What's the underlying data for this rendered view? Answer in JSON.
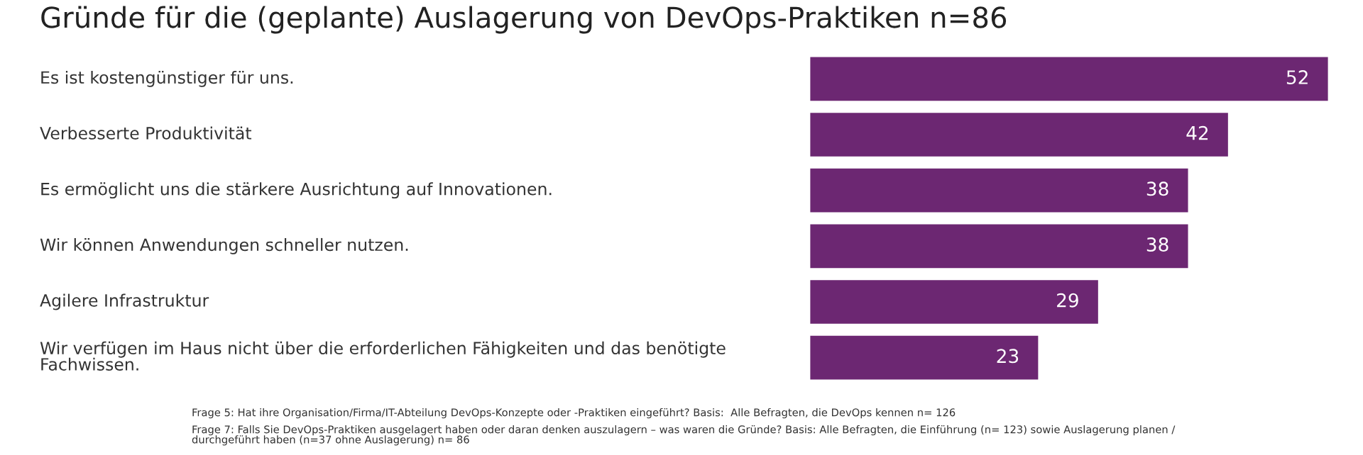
{
  "chart_data": {
    "type": "bar",
    "orientation": "horizontal",
    "data_labels": true,
    "title": "Gründe für die (geplante) Auslagerung von DevOps-Praktiken n=86",
    "categories": [
      "Es ist kostengünstiger für uns.",
      "Verbesserte Produktivität",
      "Es ermöglicht uns die stärkere Ausrichtung auf Innovationen.",
      "Wir können Anwendungen schneller nutzen.",
      "Agilere Infrastruktur",
      "Wir verfügen im Haus nicht über die erforderlichen Fähigkeiten und das benötigte\nFachwissen."
    ],
    "values": [
      52,
      42,
      38,
      38,
      29,
      23
    ],
    "color": "#6c2772",
    "annotations": [
      "Frage 5: Hat ihre Organisation/Firma/IT-Abteilung DevOps-Konzepte oder -Praktiken eingeführt? Basis:  Alle Befragten, die DevOps kennen n= 126",
      "Frage 7: Falls Sie DevOps-Praktiken ausgelagert haben oder daran denken auszulagern – was waren die Gründe? Basis: Alle Befragten, die Einführung (n= 123) sowie Auslagerung planen /\ndurchgeführt haben (n=37 ohne Auslagerung) n= 86"
    ]
  }
}
